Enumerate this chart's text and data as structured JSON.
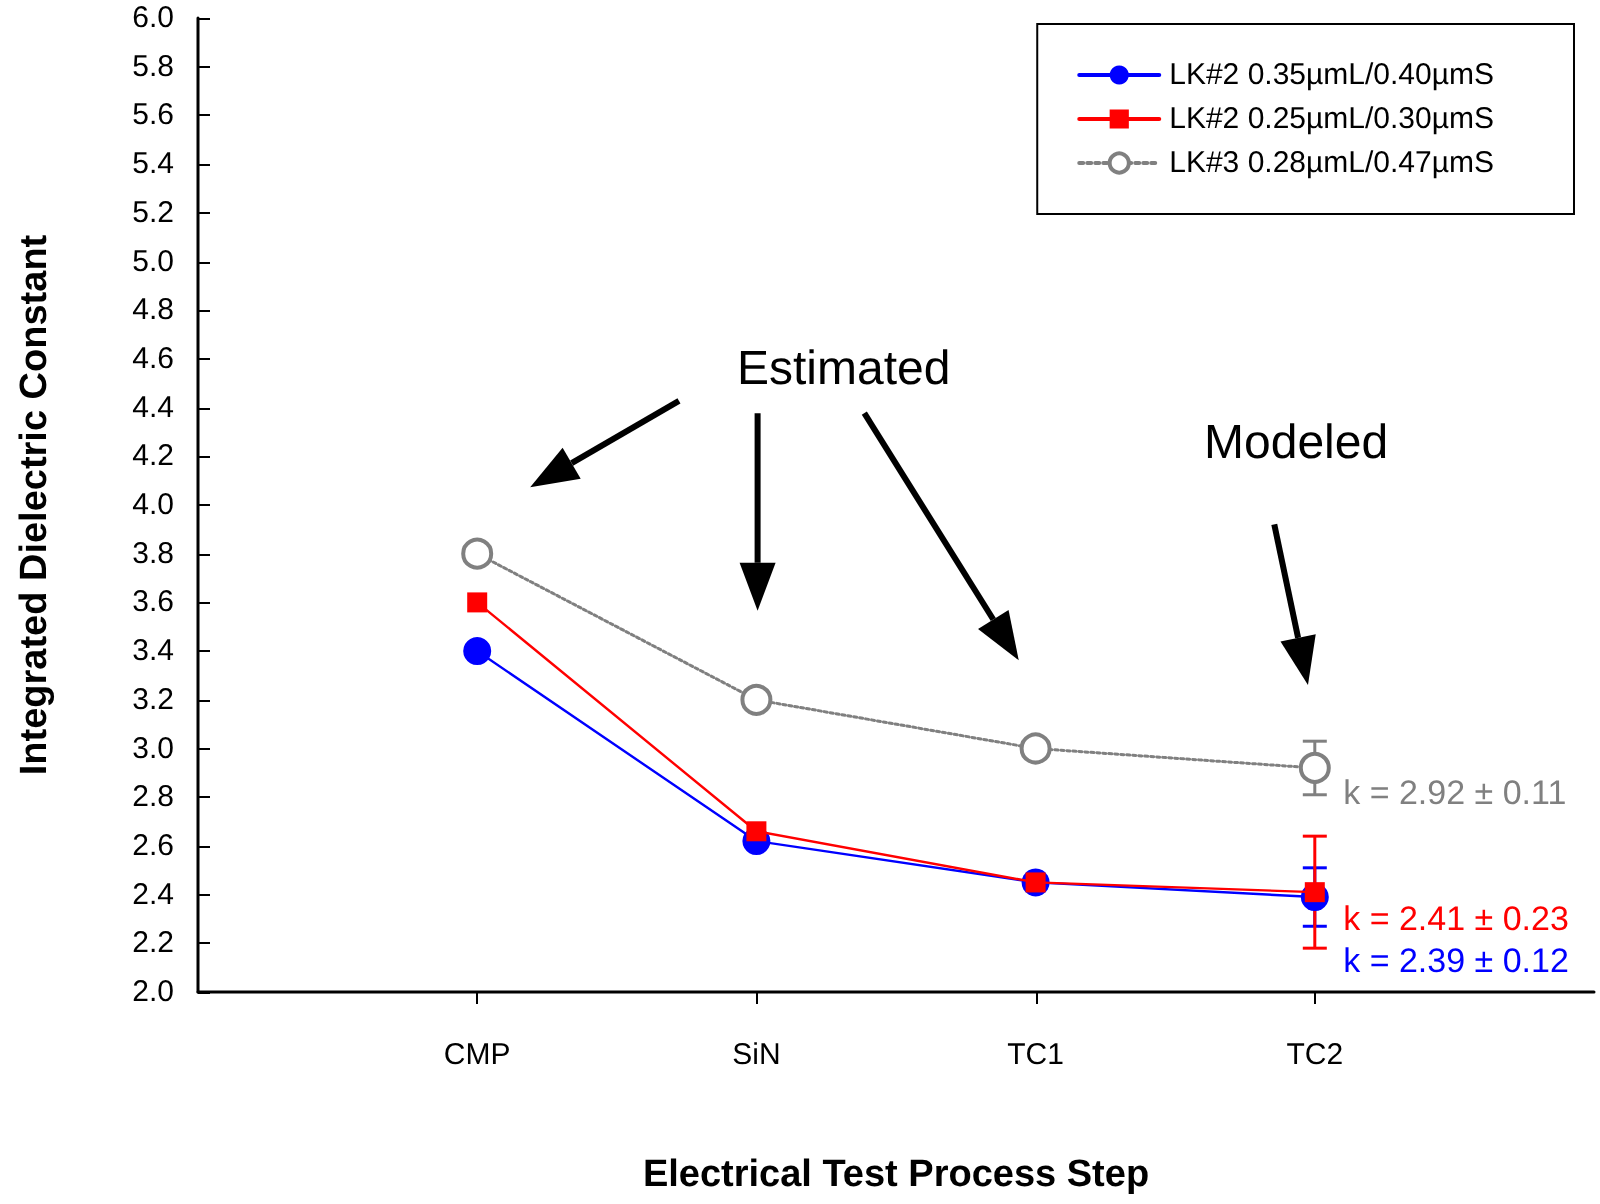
{
  "chart_data": {
    "type": "line",
    "xlabel": "Electrical Test Process Step",
    "ylabel": "Integrated Dielectric Constant",
    "categories": [
      "CMP",
      "SiN",
      "TC1",
      "TC2"
    ],
    "series": [
      {
        "name": "LK#2 0.35µmL/0.40µmS",
        "color": "#0000ff",
        "values": [
          3.4,
          2.62,
          2.45,
          2.39
        ],
        "errors": [
          null,
          null,
          null,
          0.12
        ],
        "marker": "circle",
        "line_style": "solid"
      },
      {
        "name": "LK#2 0.25µmL/0.30µmS",
        "color": "#ff0000",
        "values": [
          3.6,
          2.66,
          2.45,
          2.41
        ],
        "errors": [
          null,
          null,
          null,
          0.23
        ],
        "marker": "square",
        "line_style": "solid"
      },
      {
        "name": "LK#3 0.28µmL/0.47µmS",
        "color": "#808080",
        "values": [
          3.8,
          3.2,
          3.0,
          2.92
        ],
        "errors": [
          null,
          null,
          null,
          0.11
        ],
        "marker": "circle",
        "line_style": "dotted"
      }
    ],
    "ylim": [
      2.0,
      6.0
    ],
    "yticks": [
      {
        "value": 2.0,
        "label": "2.0"
      },
      {
        "value": 2.2,
        "label": "2.2"
      },
      {
        "value": 2.4,
        "label": "2.4"
      },
      {
        "value": 2.6,
        "label": "2.6"
      },
      {
        "value": 2.8,
        "label": "2.8"
      },
      {
        "value": 3.0,
        "label": "3.0"
      },
      {
        "value": 3.2,
        "label": "3.2"
      },
      {
        "value": 3.4,
        "label": "3.4"
      },
      {
        "value": 3.6,
        "label": "3.6"
      },
      {
        "value": 3.8,
        "label": "3.8"
      },
      {
        "value": 4.0,
        "label": "4.0"
      },
      {
        "value": 4.2,
        "label": "4.2"
      },
      {
        "value": 4.4,
        "label": "4.4"
      },
      {
        "value": 4.6,
        "label": "4.6"
      },
      {
        "value": 4.8,
        "label": "4.8"
      },
      {
        "value": 5.0,
        "label": "5.0"
      },
      {
        "value": 5.2,
        "label": "5.2"
      },
      {
        "value": 5.4,
        "label": "5.4"
      },
      {
        "value": 5.6,
        "label": "5.6"
      },
      {
        "value": 5.8,
        "label": "5.8"
      },
      {
        "value": 6.0,
        "label": "6.0"
      }
    ],
    "grid": false,
    "legend": "top right",
    "annotations": [
      "Estimated",
      "Modeled",
      {
        "text": "k = 2.92 ± 0.11",
        "x": "TC2",
        "y": 2.92
      },
      {
        "text": "k = 2.41 ± 0.23",
        "x": "TC2",
        "y": 2.41
      },
      {
        "text": "k = 2.39 ± 0.12",
        "x": "TC2",
        "y": 2.39
      }
    ]
  }
}
